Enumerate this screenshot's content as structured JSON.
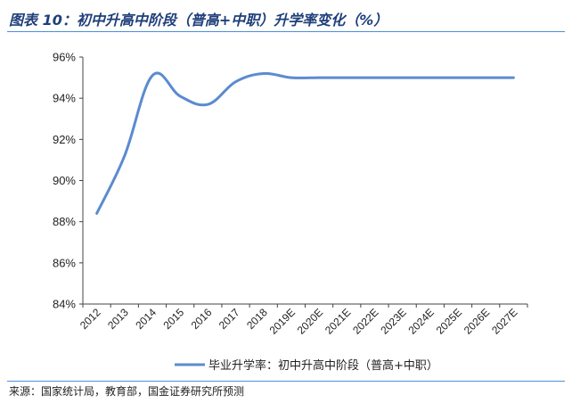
{
  "header": {
    "title": "图表 10：初中升高中阶段（普高+中职）升学率变化（%）"
  },
  "footer": {
    "source": "来源：国家统计局，教育部，国金证券研究所预测"
  },
  "chart_data": {
    "type": "line",
    "title": "图表 10：初中升高中阶段（普高+中职）升学率变化（%）",
    "xlabel": "",
    "ylabel": "",
    "categories": [
      "2012",
      "2013",
      "2014",
      "2015",
      "2016",
      "2017",
      "2018",
      "2019E",
      "2020E",
      "2021E",
      "2022E",
      "2023E",
      "2024E",
      "2025E",
      "2026E",
      "2027E"
    ],
    "series": [
      {
        "name": "毕业升学率：初中升高中阶段（普高+中职）",
        "color": "#5b8bd0",
        "values": [
          88.4,
          91.2,
          95.1,
          94.1,
          93.7,
          94.8,
          95.2,
          95.0,
          95.0,
          95.0,
          95.0,
          95.0,
          95.0,
          95.0,
          95.0,
          95.0
        ]
      }
    ],
    "ylim": [
      84,
      96
    ],
    "yticks": [
      84,
      86,
      88,
      90,
      92,
      94,
      96
    ],
    "ytick_labels": [
      "84%",
      "86%",
      "88%",
      "90%",
      "92%",
      "94%",
      "96%"
    ],
    "grid": false,
    "legend_position": "bottom",
    "smooth": true
  }
}
